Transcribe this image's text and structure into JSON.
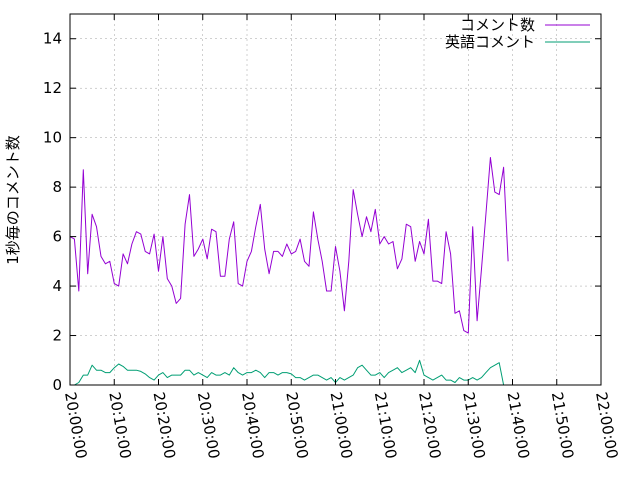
{
  "chart_data": {
    "type": "line",
    "xlabel": "",
    "ylabel": "1秒毎のコメント数",
    "xlim": [
      "20:00:00",
      "22:00:00"
    ],
    "ylim": [
      0,
      15
    ],
    "grid": true,
    "legend_position": "top-right",
    "x_ticks": [
      "20:00:00",
      "20:10:00",
      "20:20:00",
      "20:30:00",
      "20:40:00",
      "20:50:00",
      "21:00:00",
      "21:10:00",
      "21:20:00",
      "21:30:00",
      "21:40:00",
      "21:50:00",
      "22:00:00"
    ],
    "y_ticks": [
      0,
      2,
      4,
      6,
      8,
      10,
      12,
      14
    ],
    "series": [
      {
        "name": "コメント数",
        "color": "#9400d3",
        "points": [
          [
            "20:00:00",
            6.0
          ],
          [
            "20:01:00",
            5.9
          ],
          [
            "20:02:00",
            3.8
          ],
          [
            "20:03:00",
            8.7
          ],
          [
            "20:04:00",
            4.5
          ],
          [
            "20:05:00",
            6.9
          ],
          [
            "20:06:00",
            6.4
          ],
          [
            "20:07:00",
            5.2
          ],
          [
            "20:08:00",
            4.9
          ],
          [
            "20:09:00",
            5.0
          ],
          [
            "20:10:00",
            4.1
          ],
          [
            "20:11:00",
            4.0
          ],
          [
            "20:12:00",
            5.3
          ],
          [
            "20:13:00",
            4.9
          ],
          [
            "20:14:00",
            5.7
          ],
          [
            "20:15:00",
            6.2
          ],
          [
            "20:16:00",
            6.1
          ],
          [
            "20:17:00",
            5.4
          ],
          [
            "20:18:00",
            5.3
          ],
          [
            "20:19:00",
            6.1
          ],
          [
            "20:20:00",
            4.6
          ],
          [
            "20:21:00",
            6.0
          ],
          [
            "20:22:00",
            4.3
          ],
          [
            "20:23:00",
            4.0
          ],
          [
            "20:24:00",
            3.3
          ],
          [
            "20:25:00",
            3.5
          ],
          [
            "20:26:00",
            6.5
          ],
          [
            "20:27:00",
            7.7
          ],
          [
            "20:28:00",
            5.2
          ],
          [
            "20:29:00",
            5.5
          ],
          [
            "20:30:00",
            5.9
          ],
          [
            "20:31:00",
            5.1
          ],
          [
            "20:32:00",
            6.3
          ],
          [
            "20:33:00",
            6.2
          ],
          [
            "20:34:00",
            4.4
          ],
          [
            "20:35:00",
            4.4
          ],
          [
            "20:36:00",
            5.9
          ],
          [
            "20:37:00",
            6.6
          ],
          [
            "20:38:00",
            4.1
          ],
          [
            "20:39:00",
            4.0
          ],
          [
            "20:40:00",
            5.0
          ],
          [
            "20:41:00",
            5.4
          ],
          [
            "20:42:00",
            6.4
          ],
          [
            "20:43:00",
            7.3
          ],
          [
            "20:44:00",
            5.5
          ],
          [
            "20:45:00",
            4.5
          ],
          [
            "20:46:00",
            5.4
          ],
          [
            "20:47:00",
            5.4
          ],
          [
            "20:48:00",
            5.2
          ],
          [
            "20:49:00",
            5.7
          ],
          [
            "20:50:00",
            5.3
          ],
          [
            "20:51:00",
            5.4
          ],
          [
            "20:52:00",
            5.9
          ],
          [
            "20:53:00",
            5.0
          ],
          [
            "20:54:00",
            4.8
          ],
          [
            "20:55:00",
            7.0
          ],
          [
            "20:56:00",
            5.9
          ],
          [
            "20:57:00",
            5.0
          ],
          [
            "20:58:00",
            3.8
          ],
          [
            "20:59:00",
            3.8
          ],
          [
            "21:00:00",
            5.6
          ],
          [
            "21:01:00",
            4.6
          ],
          [
            "21:02:00",
            3.0
          ],
          [
            "21:03:00",
            5.0
          ],
          [
            "21:04:00",
            7.9
          ],
          [
            "21:05:00",
            6.9
          ],
          [
            "21:06:00",
            6.0
          ],
          [
            "21:07:00",
            6.8
          ],
          [
            "21:08:00",
            6.2
          ],
          [
            "21:09:00",
            7.1
          ],
          [
            "21:10:00",
            5.7
          ],
          [
            "21:11:00",
            6.0
          ],
          [
            "21:12:00",
            5.7
          ],
          [
            "21:13:00",
            5.8
          ],
          [
            "21:14:00",
            4.7
          ],
          [
            "21:15:00",
            5.1
          ],
          [
            "21:16:00",
            6.5
          ],
          [
            "21:17:00",
            6.4
          ],
          [
            "21:18:00",
            5.0
          ],
          [
            "21:19:00",
            5.8
          ],
          [
            "21:20:00",
            5.3
          ],
          [
            "21:21:00",
            6.7
          ],
          [
            "21:22:00",
            4.2
          ],
          [
            "21:23:00",
            4.2
          ],
          [
            "21:24:00",
            4.1
          ],
          [
            "21:25:00",
            6.2
          ],
          [
            "21:26:00",
            5.3
          ],
          [
            "21:27:00",
            2.9
          ],
          [
            "21:28:00",
            3.0
          ],
          [
            "21:29:00",
            2.2
          ],
          [
            "21:30:00",
            2.1
          ],
          [
            "21:31:00",
            6.4
          ],
          [
            "21:32:00",
            2.6
          ],
          [
            "21:33:00",
            4.7
          ],
          [
            "21:34:00",
            6.9
          ],
          [
            "21:35:00",
            9.2
          ],
          [
            "21:36:00",
            7.8
          ],
          [
            "21:37:00",
            7.7
          ],
          [
            "21:38:00",
            8.8
          ],
          [
            "21:39:00",
            5.0
          ]
        ]
      },
      {
        "name": "英語コメント",
        "color": "#009e73",
        "points": [
          [
            "20:00:00",
            0.0
          ],
          [
            "20:01:00",
            0.0
          ],
          [
            "20:02:00",
            0.1
          ],
          [
            "20:03:00",
            0.4
          ],
          [
            "20:04:00",
            0.4
          ],
          [
            "20:05:00",
            0.8
          ],
          [
            "20:06:00",
            0.6
          ],
          [
            "20:07:00",
            0.6
          ],
          [
            "20:08:00",
            0.5
          ],
          [
            "20:09:00",
            0.5
          ],
          [
            "20:10:00",
            0.7
          ],
          [
            "20:11:00",
            0.85
          ],
          [
            "20:12:00",
            0.75
          ],
          [
            "20:13:00",
            0.6
          ],
          [
            "20:14:00",
            0.6
          ],
          [
            "20:15:00",
            0.6
          ],
          [
            "20:16:00",
            0.55
          ],
          [
            "20:17:00",
            0.45
          ],
          [
            "20:18:00",
            0.3
          ],
          [
            "20:19:00",
            0.2
          ],
          [
            "20:20:00",
            0.4
          ],
          [
            "20:21:00",
            0.5
          ],
          [
            "20:22:00",
            0.3
          ],
          [
            "20:23:00",
            0.4
          ],
          [
            "20:24:00",
            0.4
          ],
          [
            "20:25:00",
            0.4
          ],
          [
            "20:26:00",
            0.6
          ],
          [
            "20:27:00",
            0.6
          ],
          [
            "20:28:00",
            0.4
          ],
          [
            "20:29:00",
            0.5
          ],
          [
            "20:30:00",
            0.4
          ],
          [
            "20:31:00",
            0.3
          ],
          [
            "20:32:00",
            0.5
          ],
          [
            "20:33:00",
            0.4
          ],
          [
            "20:34:00",
            0.4
          ],
          [
            "20:35:00",
            0.5
          ],
          [
            "20:36:00",
            0.4
          ],
          [
            "20:37:00",
            0.7
          ],
          [
            "20:38:00",
            0.5
          ],
          [
            "20:39:00",
            0.4
          ],
          [
            "20:40:00",
            0.5
          ],
          [
            "20:41:00",
            0.5
          ],
          [
            "20:42:00",
            0.6
          ],
          [
            "20:43:00",
            0.5
          ],
          [
            "20:44:00",
            0.3
          ],
          [
            "20:45:00",
            0.5
          ],
          [
            "20:46:00",
            0.5
          ],
          [
            "20:47:00",
            0.4
          ],
          [
            "20:48:00",
            0.5
          ],
          [
            "20:49:00",
            0.5
          ],
          [
            "20:50:00",
            0.45
          ],
          [
            "20:51:00",
            0.3
          ],
          [
            "20:52:00",
            0.3
          ],
          [
            "20:53:00",
            0.2
          ],
          [
            "20:54:00",
            0.3
          ],
          [
            "20:55:00",
            0.4
          ],
          [
            "20:56:00",
            0.4
          ],
          [
            "20:57:00",
            0.3
          ],
          [
            "20:58:00",
            0.2
          ],
          [
            "20:59:00",
            0.3
          ],
          [
            "21:00:00",
            0.1
          ],
          [
            "21:01:00",
            0.3
          ],
          [
            "21:02:00",
            0.2
          ],
          [
            "21:03:00",
            0.3
          ],
          [
            "21:04:00",
            0.4
          ],
          [
            "21:05:00",
            0.7
          ],
          [
            "21:06:00",
            0.8
          ],
          [
            "21:07:00",
            0.6
          ],
          [
            "21:08:00",
            0.4
          ],
          [
            "21:09:00",
            0.4
          ],
          [
            "21:10:00",
            0.5
          ],
          [
            "21:11:00",
            0.3
          ],
          [
            "21:12:00",
            0.5
          ],
          [
            "21:13:00",
            0.6
          ],
          [
            "21:14:00",
            0.7
          ],
          [
            "21:15:00",
            0.5
          ],
          [
            "21:16:00",
            0.6
          ],
          [
            "21:17:00",
            0.7
          ],
          [
            "21:18:00",
            0.5
          ],
          [
            "21:19:00",
            1.0
          ],
          [
            "21:20:00",
            0.4
          ],
          [
            "21:21:00",
            0.3
          ],
          [
            "21:22:00",
            0.2
          ],
          [
            "21:23:00",
            0.3
          ],
          [
            "21:24:00",
            0.4
          ],
          [
            "21:25:00",
            0.2
          ],
          [
            "21:26:00",
            0.2
          ],
          [
            "21:27:00",
            0.1
          ],
          [
            "21:28:00",
            0.3
          ],
          [
            "21:29:00",
            0.2
          ],
          [
            "21:30:00",
            0.2
          ],
          [
            "21:31:00",
            0.3
          ],
          [
            "21:32:00",
            0.2
          ],
          [
            "21:33:00",
            0.3
          ],
          [
            "21:34:00",
            0.5
          ],
          [
            "21:35:00",
            0.7
          ],
          [
            "21:36:00",
            0.8
          ],
          [
            "21:37:00",
            0.9
          ],
          [
            "21:38:00",
            0.0
          ],
          [
            "21:39:00",
            0.0
          ]
        ]
      }
    ]
  }
}
